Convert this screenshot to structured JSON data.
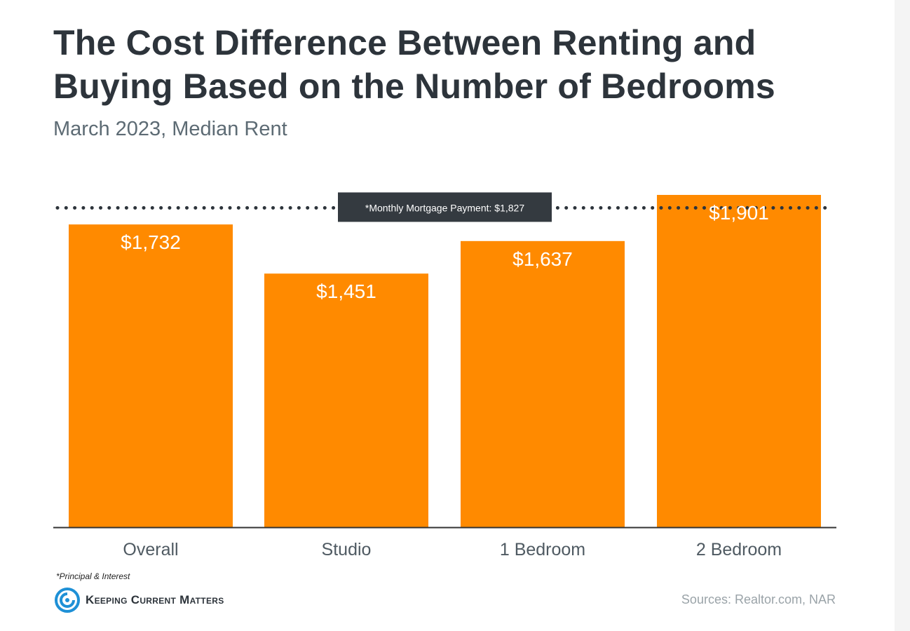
{
  "title": "The Cost Difference Between Renting and Buying Based on the Number of Bedrooms",
  "subtitle": "March 2023, Median Rent",
  "footnote": "*Principal & Interest",
  "logo_text": "Keeping Current Matters",
  "source": "Sources: Realtor.com, NAR",
  "chart_data": {
    "type": "bar",
    "title": "The Cost Difference Between Renting and Buying Based on the Number of Bedrooms",
    "subtitle": "March 2023, Median Rent",
    "categories": [
      "Overall",
      "Studio",
      "1 Bedroom",
      "2 Bedroom"
    ],
    "values": [
      1732,
      1451,
      1637,
      1901
    ],
    "value_labels": [
      "$1,732",
      "$1,451",
      "$1,637",
      "$1,901"
    ],
    "reference_line": {
      "value": 1827,
      "label": "*Monthly Mortgage Payment: $1,827",
      "style": "dotted"
    },
    "ylim": [
      0,
      1960
    ],
    "bar_color": "#ff8a00",
    "grid": false,
    "xlabel": "",
    "ylabel": ""
  },
  "colors": {
    "bar": "#ff8a00",
    "title": "#2d343b",
    "subtitle": "#5d6b74",
    "axis": "#333333",
    "label_box": "#343a40",
    "logo_blue": "#1e90d6"
  }
}
